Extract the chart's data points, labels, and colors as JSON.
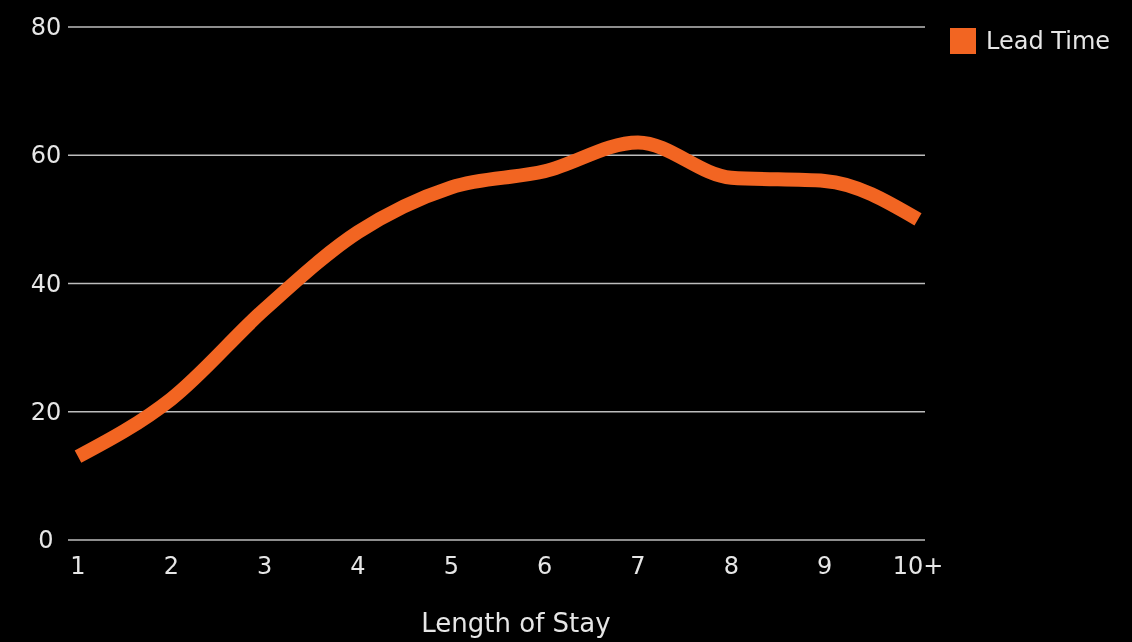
{
  "chart_data": {
    "type": "line",
    "xlabel": "Length of Stay",
    "categories": [
      "1",
      "2",
      "3",
      "4",
      "5",
      "6",
      "7",
      "8",
      "9",
      "10+"
    ],
    "series": [
      {
        "name": "Lead Time",
        "color": "#f26522",
        "values": [
          13,
          22,
          36,
          48,
          55,
          57.5,
          62,
          56.5,
          56,
          50
        ]
      }
    ],
    "ylim": [
      0,
      80
    ],
    "yticks": [
      0,
      20,
      40,
      60,
      80
    ],
    "grid": "y",
    "legend": "top right"
  }
}
